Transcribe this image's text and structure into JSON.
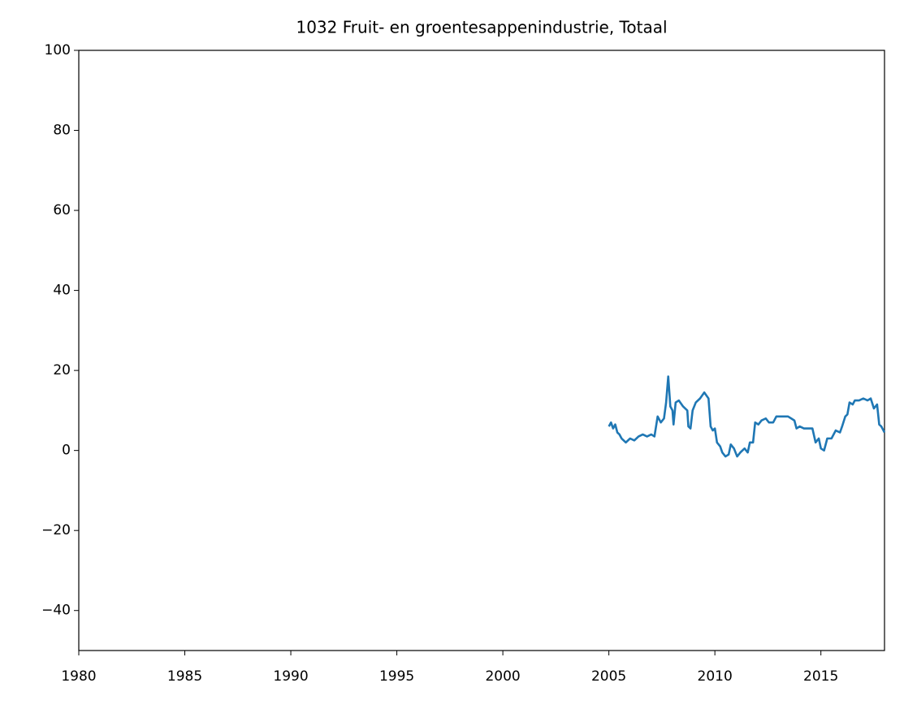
{
  "chart_data": {
    "type": "line",
    "title": "1032 Fruit- en groentesappenindustrie, Totaal",
    "x": [
      2005.0,
      2005.1,
      2005.2,
      2005.3,
      2005.4,
      2005.5,
      2005.6,
      2005.8,
      2006.0,
      2006.2,
      2006.4,
      2006.6,
      2006.8,
      2007.0,
      2007.15,
      2007.3,
      2007.45,
      2007.6,
      2007.7,
      2007.8,
      2007.9,
      2008.0,
      2008.05,
      2008.15,
      2008.3,
      2008.5,
      2008.7,
      2008.75,
      2008.85,
      2008.95,
      2009.1,
      2009.3,
      2009.5,
      2009.7,
      2009.8,
      2009.9,
      2010.0,
      2010.1,
      2010.25,
      2010.35,
      2010.5,
      2010.65,
      2010.75,
      2010.9,
      2011.05,
      2011.2,
      2011.4,
      2011.55,
      2011.65,
      2011.8,
      2011.9,
      2012.05,
      2012.2,
      2012.4,
      2012.55,
      2012.75,
      2012.9,
      2013.2,
      2013.45,
      2013.6,
      2013.75,
      2013.85,
      2014.0,
      2014.2,
      2014.6,
      2014.75,
      2014.9,
      2015.0,
      2015.15,
      2015.3,
      2015.5,
      2015.7,
      2015.9,
      2016.0,
      2016.15,
      2016.25,
      2016.35,
      2016.5,
      2016.6,
      2016.8,
      2017.0,
      2017.2,
      2017.35,
      2017.5,
      2017.65,
      2017.75,
      2017.85,
      2017.95,
      2018.0
    ],
    "series": [
      {
        "color": "#1f77b4",
        "values": [
          6,
          7,
          5.5,
          6.5,
          4.5,
          4,
          3,
          2,
          3,
          2.5,
          3.5,
          4,
          3.5,
          4,
          3.5,
          8.5,
          7,
          8,
          12,
          18.5,
          11,
          10,
          6.5,
          12,
          12.5,
          11,
          10,
          6,
          5.5,
          10,
          12,
          13,
          14.5,
          13,
          6,
          5,
          5.5,
          2,
          1,
          -0.5,
          -1.5,
          -1,
          1.5,
          0.5,
          -1.5,
          -0.5,
          0.5,
          -0.5,
          2,
          2,
          7,
          6.5,
          7.5,
          8,
          7,
          7,
          8.5,
          8.5,
          8.5,
          8,
          7.5,
          5.5,
          6,
          5.5,
          5.5,
          2,
          3,
          0.5,
          0,
          3,
          3,
          5,
          4.5,
          6,
          8.5,
          9,
          12,
          11.5,
          12.5,
          12.5,
          13,
          12.5,
          13,
          10.5,
          11.5,
          6.5,
          6,
          5,
          4.5
        ]
      }
    ],
    "xlim": [
      1980,
      2018
    ],
    "xticks": [
      1980,
      1985,
      1990,
      1995,
      2000,
      2005,
      2010,
      2015
    ],
    "ylim": [
      -50,
      100
    ],
    "yticks": [
      {
        "value": -40,
        "label": "−40"
      },
      {
        "value": -20,
        "label": "−20"
      },
      0,
      20,
      40,
      60,
      80,
      100
    ]
  }
}
